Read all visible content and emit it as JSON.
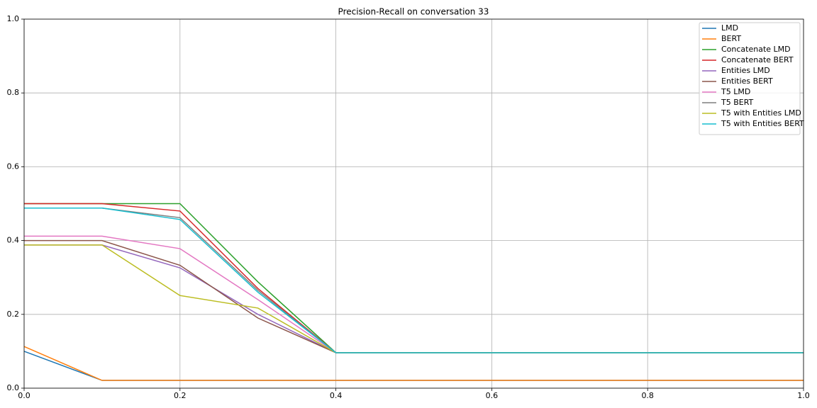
{
  "chart_data": {
    "type": "line",
    "title": "Precision-Recall on conversation 33",
    "x": [
      0,
      0.1,
      0.2,
      0.3,
      0.4,
      0.5,
      0.6,
      0.7,
      0.8,
      0.9,
      1
    ],
    "xlim": [
      0,
      1
    ],
    "ylim": [
      0,
      1
    ],
    "xticks": [
      {
        "value": 0,
        "label": "0.0"
      },
      0.2,
      0.4,
      0.6,
      0.8,
      {
        "value": 1,
        "label": "1.0"
      }
    ],
    "yticks": [
      {
        "value": 0,
        "label": "0.0"
      },
      0.2,
      0.4,
      0.6,
      0.8,
      {
        "value": 1,
        "label": "1.0"
      }
    ],
    "grid": true,
    "legend": "upper right",
    "series": [
      {
        "name": "LMD",
        "color": "#1f77b4",
        "values": [
          0.1,
          0.021,
          0.021,
          0.021,
          0.021,
          0.021,
          0.021,
          0.021,
          0.021,
          0.021,
          0.021
        ]
      },
      {
        "name": "BERT",
        "color": "#ff7f0e",
        "values": [
          0.113,
          0.021,
          0.021,
          0.021,
          0.021,
          0.021,
          0.021,
          0.021,
          0.021,
          0.021,
          0.021
        ]
      },
      {
        "name": "Concatenate LMD",
        "color": "#2ca02c",
        "values": [
          0.5,
          0.5,
          0.5,
          0.288,
          0.096,
          0.096,
          0.096,
          0.096,
          0.096,
          0.096,
          0.096
        ]
      },
      {
        "name": "Concatenate BERT",
        "color": "#d62728",
        "values": [
          0.5,
          0.5,
          0.48,
          0.27,
          0.096,
          0.096,
          0.096,
          0.096,
          0.096,
          0.096,
          0.096
        ]
      },
      {
        "name": "Entities LMD",
        "color": "#9467bd",
        "values": [
          0.388,
          0.388,
          0.326,
          0.2,
          0.096,
          0.096,
          0.096,
          0.096,
          0.096,
          0.096,
          0.096
        ]
      },
      {
        "name": "Entities BERT",
        "color": "#8c564b",
        "values": [
          0.4,
          0.4,
          0.333,
          0.19,
          0.096,
          0.096,
          0.096,
          0.096,
          0.096,
          0.096,
          0.096
        ]
      },
      {
        "name": "T5 LMD",
        "color": "#e377c2",
        "values": [
          0.412,
          0.412,
          0.378,
          0.24,
          0.096,
          0.096,
          0.096,
          0.096,
          0.096,
          0.096,
          0.096
        ]
      },
      {
        "name": "T5 BERT",
        "color": "#7f7f7f",
        "values": [
          0.488,
          0.488,
          0.462,
          0.265,
          0.096,
          0.096,
          0.096,
          0.096,
          0.096,
          0.096,
          0.096
        ]
      },
      {
        "name": "T5 with Entities LMD",
        "color": "#bcbd22",
        "values": [
          0.388,
          0.388,
          0.251,
          0.217,
          0.096,
          0.096,
          0.096,
          0.096,
          0.096,
          0.096,
          0.096
        ]
      },
      {
        "name": "T5 with Entities BERT",
        "color": "#17becf",
        "values": [
          0.488,
          0.488,
          0.457,
          0.26,
          0.096,
          0.096,
          0.096,
          0.096,
          0.096,
          0.096,
          0.096
        ]
      }
    ]
  }
}
